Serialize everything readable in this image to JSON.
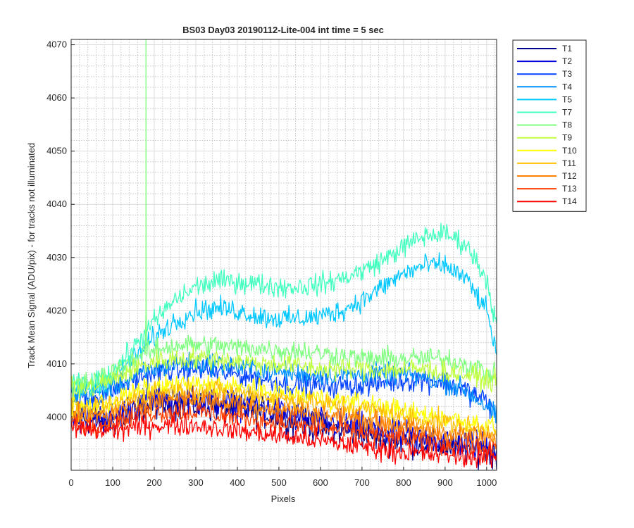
{
  "chart_data": {
    "type": "line",
    "title": "BS03 Day03 20190112-Lite-004 int time = 5 sec",
    "xlabel": "Pixels",
    "ylabel": "Track Mean Signal (ADU/pix) - for tracks not illuminated",
    "xlim": [
      0,
      1024
    ],
    "ylim": [
      3990,
      4071
    ],
    "xticks": [
      "0",
      "100",
      "200",
      "300",
      "400",
      "500",
      "600",
      "700",
      "800",
      "900",
      "1000"
    ],
    "yticks": [
      "4000",
      "4010",
      "4020",
      "4030",
      "4040",
      "4050",
      "4060",
      "4070"
    ],
    "grid": true,
    "minor_grid": true,
    "legend_position": "outside-right",
    "x_knots": [
      0,
      50,
      100,
      150,
      200,
      250,
      300,
      350,
      400,
      450,
      500,
      550,
      600,
      650,
      700,
      750,
      800,
      850,
      900,
      950,
      1000,
      1024
    ],
    "series": [
      {
        "name": "T1",
        "color": "#00008f",
        "noise": 1.4,
        "values": [
          4000,
          3999.5,
          3999,
          4001,
          4002.5,
          4002.5,
          4002,
          4002,
          4001.5,
          4001,
          4000,
          3999,
          3998,
          3997.5,
          3997,
          3996,
          3995.5,
          3995,
          3994.5,
          3994,
          3993.5,
          3993
        ]
      },
      {
        "name": "T2",
        "color": "#0000df",
        "noise": 1.4,
        "values": [
          4000,
          4000,
          4000,
          4002,
          4003.5,
          4003.5,
          4003,
          4003,
          4002.5,
          4002,
          4001,
          4000,
          3999,
          3998.5,
          3998,
          3997,
          3996.5,
          3996,
          3995.5,
          3995,
          3994.5,
          3994
        ]
      },
      {
        "name": "T3",
        "color": "#0040ff",
        "noise": 1.1,
        "values": [
          4003,
          4003.5,
          4005,
          4007,
          4008.5,
          4009,
          4009,
          4008.5,
          4008,
          4007.5,
          4006.5,
          4006,
          4006,
          4006,
          4006,
          4006.5,
          4007,
          4007,
          4006.5,
          4005,
          4003,
          4000
        ]
      },
      {
        "name": "T4",
        "color": "#0090ff",
        "noise": 1.0,
        "values": [
          4004,
          4004.5,
          4005.5,
          4007.5,
          4009,
          4010,
          4010,
          4010,
          4009.5,
          4009,
          4008.5,
          4008,
          4008,
          4008,
          4008,
          4008,
          4008,
          4007.5,
          4006.5,
          4005,
          4002,
          4000
        ]
      },
      {
        "name": "T5",
        "color": "#00c8ff",
        "noise": 1.0,
        "values": [
          4005,
          4005.5,
          4007.5,
          4011,
          4015,
          4018,
          4020,
          4020.5,
          4020,
          4019,
          4018.5,
          4018.5,
          4019,
          4020,
          4022,
          4024.5,
          4027,
          4028.5,
          4028.5,
          4026,
          4020,
          4012
        ]
      },
      {
        "name": "T7",
        "color": "#40ffbf",
        "noise": 1.0,
        "values": [
          4006,
          4006,
          4008.5,
          4013,
          4018,
          4022,
          4024.5,
          4025.5,
          4025.5,
          4025,
          4024.5,
          4024.5,
          4025,
          4026,
          4027.5,
          4029.5,
          4032,
          4034,
          4034.5,
          4032.5,
          4026,
          4017
        ]
      },
      {
        "name": "T8",
        "color": "#7fff7f",
        "noise": 1.0,
        "values": [
          4006,
          4006.5,
          4008.5,
          4011,
          4012.5,
          4013.5,
          4013.5,
          4013.5,
          4013,
          4013,
          4012.5,
          4012.5,
          4012,
          4011.5,
          4011,
          4011,
          4011,
          4011,
          4011,
          4010,
          4008.5,
          4007.5
        ]
      },
      {
        "name": "T9",
        "color": "#bfff40",
        "noise": 1.0,
        "values": [
          4005,
          4005.5,
          4007,
          4009,
          4010.5,
          4011,
          4011,
          4011,
          4010.5,
          4010,
          4010,
          4009.5,
          4009,
          4009,
          4009,
          4009,
          4009,
          4009,
          4008.5,
          4008,
          4007,
          4006.5
        ]
      },
      {
        "name": "T10",
        "color": "#ffff00",
        "noise": 1.0,
        "values": [
          4002,
          4002,
          4003,
          4004.5,
          4005.5,
          4006,
          4006,
          4006,
          4005.5,
          4005,
          4004.5,
          4004,
          4003.5,
          4003,
          4002.5,
          4002,
          4001,
          4000.5,
          4000,
          3999,
          3998.5,
          3998
        ]
      },
      {
        "name": "T11",
        "color": "#ffbf00",
        "noise": 1.0,
        "values": [
          4001,
          4001,
          4002,
          4003.5,
          4004.5,
          4005,
          4005,
          4005,
          4004.5,
          4004,
          4003.5,
          4003,
          4002.5,
          4002,
          4001.5,
          4001,
          4000,
          3999.5,
          3999,
          3998,
          3997.5,
          3997
        ]
      },
      {
        "name": "T12",
        "color": "#ff8000",
        "noise": 1.0,
        "values": [
          4000,
          4000,
          4000.5,
          4002,
          4003,
          4003.5,
          4003.5,
          4003,
          4002.5,
          4002,
          4001.5,
          4001,
          4000.5,
          4000,
          3999.5,
          3999,
          3998,
          3997.5,
          3997,
          3996.5,
          3996,
          3995.5
        ]
      },
      {
        "name": "T13",
        "color": "#ff4000",
        "noise": 1.0,
        "values": [
          3999,
          3998.5,
          3999,
          4000,
          4001,
          4001,
          4001,
          4000.5,
          4000,
          3999.5,
          3999,
          3998.5,
          3998,
          3997.5,
          3997,
          3996.5,
          3996,
          3995.5,
          3995,
          3994.5,
          3994,
          3994
        ]
      },
      {
        "name": "T14",
        "color": "#ff0000",
        "noise": 1.0,
        "values": [
          3998,
          3997.5,
          3997.5,
          3998,
          3998.5,
          3998.5,
          3998.5,
          3998,
          3997.5,
          3997,
          3996.5,
          3996,
          3995.5,
          3995,
          3994.5,
          3994,
          3993.5,
          3993,
          3993,
          3992.5,
          3992.5,
          3992.5
        ]
      }
    ],
    "spike": {
      "series": "T8",
      "x": 180,
      "y_low": 4020,
      "y_high": 4071
    }
  }
}
